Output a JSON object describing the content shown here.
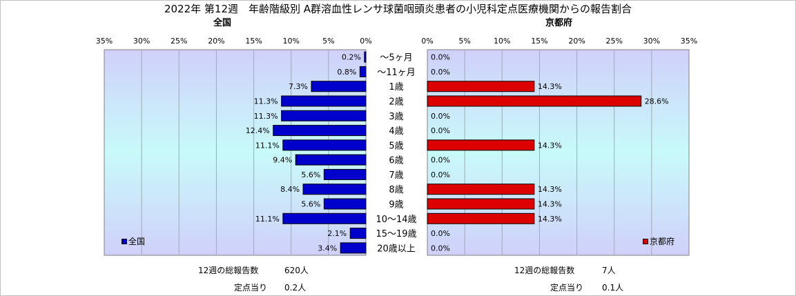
{
  "title": "2022年 第12週　年齢階級別 A群溶血性レンサ球菌咽頭炎患者の小児科定点医療機関からの報告割合",
  "colors": {
    "national": "#0000cc",
    "kyoto": "#dd0000",
    "plot_bg_top": "#d0d0fa",
    "plot_bg_mid": "#c8fafa"
  },
  "chart_data": [
    {
      "type": "bar",
      "orientation": "horizontal",
      "title": "全国",
      "legend": "全国",
      "legend_position": "bottom-left",
      "categories": [
        "～5ヶ月",
        "～11ヶ月",
        "1歳",
        "2歳",
        "3歳",
        "4歳",
        "5歳",
        "6歳",
        "7歳",
        "8歳",
        "9歳",
        "10～14歳",
        "15～19歳",
        "20歳以上"
      ],
      "values": [
        0.2,
        0.8,
        7.3,
        11.3,
        11.3,
        12.4,
        11.1,
        9.4,
        5.6,
        8.4,
        5.6,
        11.1,
        2.1,
        3.4
      ],
      "value_labels": [
        "0.2%",
        "0.8%",
        "7.3%",
        "11.3%",
        "11.3%",
        "12.4%",
        "11.1%",
        "9.4%",
        "5.6%",
        "8.4%",
        "5.6%",
        "11.1%",
        "2.1%",
        "3.4%"
      ],
      "xlim": [
        0,
        35
      ],
      "x_reversed": true,
      "ticks": [
        "35%",
        "30%",
        "25%",
        "20%",
        "15%",
        "10%",
        "5%",
        "0%"
      ],
      "grid": true
    },
    {
      "type": "bar",
      "orientation": "horizontal",
      "title": "京都府",
      "legend": "京都府",
      "legend_position": "bottom-right",
      "categories": [
        "～5ヶ月",
        "～11ヶ月",
        "1歳",
        "2歳",
        "3歳",
        "4歳",
        "5歳",
        "6歳",
        "7歳",
        "8歳",
        "9歳",
        "10～14歳",
        "15～19歳",
        "20歳以上"
      ],
      "values": [
        0.0,
        0.0,
        14.3,
        28.6,
        0.0,
        0.0,
        14.3,
        0.0,
        0.0,
        14.3,
        14.3,
        14.3,
        0.0,
        0.0
      ],
      "value_labels": [
        "0.0%",
        "0.0%",
        "14.3%",
        "28.6%",
        "0.0%",
        "0.0%",
        "14.3%",
        "0.0%",
        "0.0%",
        "14.3%",
        "14.3%",
        "14.3%",
        "0.0%",
        "0.0%"
      ],
      "xlim": [
        0,
        35
      ],
      "x_reversed": false,
      "ticks": [
        "0%",
        "5%",
        "10%",
        "15%",
        "20%",
        "25%",
        "30%",
        "35%"
      ],
      "grid": true
    }
  ],
  "footer": {
    "national": {
      "total_label": "12週の総報告数",
      "total_value": "620人",
      "per_site_label": "定点当り",
      "per_site_value": "0.2人"
    },
    "kyoto": {
      "total_label": "12週の総報告数",
      "total_value": "7人",
      "per_site_label": "定点当り",
      "per_site_value": "0.1人"
    }
  }
}
